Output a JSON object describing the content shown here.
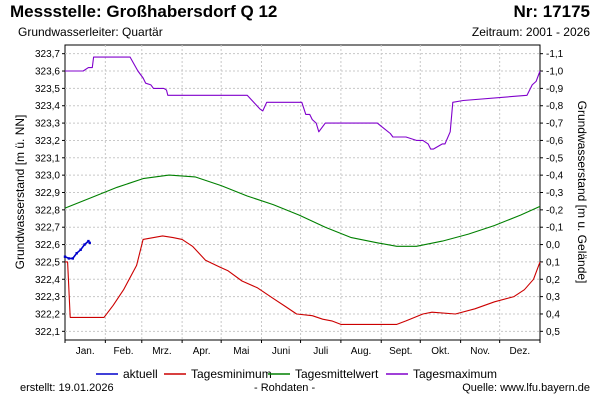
{
  "header": {
    "station": "Messstelle: Großhabersdorf Q 12",
    "number": "Nr: 17175",
    "aquifer": "Grundwasserleiter: Quartär",
    "period": "Zeitraum: 2001 - 2026"
  },
  "footer": {
    "created": "erstellt:  19.01.2026",
    "raw": "- Rohdaten -",
    "source": "Quelle: www.lfu.bayern.de"
  },
  "colors": {
    "aktuell": "#0000cc",
    "min": "#cc0000",
    "mean": "#008000",
    "max": "#8000cc",
    "grid": "#c8c8c8"
  },
  "chart_data": {
    "type": "line",
    "ylabel_left": "Grundwasserstand [m ü. NN]",
    "ylabel_right": "Grundwasserstand [m u. Gelände]",
    "ylim": [
      322.05,
      323.75
    ],
    "yticks_left": [
      "323,7",
      "323,6",
      "323,5",
      "323,4",
      "323,3",
      "323,2",
      "323,1",
      "323,0",
      "322,9",
      "322,8",
      "322,7",
      "322,6",
      "322,5",
      "322,4",
      "322,3",
      "322,2",
      "322,1"
    ],
    "yticks_right": [
      "-1,1",
      "-1,0",
      "-0,9",
      "-0,8",
      "-0,7",
      "-0,6",
      "-0,5",
      "-0,4",
      "-0,3",
      "-0,2",
      "-0,1",
      "0,0",
      "0,1",
      "0,2",
      "0,3",
      "0,4",
      "0,5"
    ],
    "xticks": [
      "Jan.",
      "Feb.",
      "Mrz.",
      "Apr.",
      "Mai",
      "Juni",
      "Juli",
      "Aug.",
      "Sept.",
      "Okt.",
      "Nov.",
      "Dez."
    ],
    "grid": true,
    "legend_position": "bottom",
    "series": [
      {
        "name": "aktuell",
        "color_key": "aktuell",
        "x": [
          0,
          3,
          6,
          9,
          12,
          15,
          18,
          19
        ],
        "y": [
          322.53,
          322.52,
          322.52,
          322.55,
          322.57,
          322.6,
          322.62,
          322.61
        ]
      },
      {
        "name": "Tagesminimum",
        "color_key": "min",
        "x": [
          0,
          2,
          4,
          30,
          37,
          45,
          55,
          60,
          75,
          83,
          90,
          98,
          108,
          119,
          125,
          136,
          148,
          160,
          170,
          178,
          190,
          198,
          205,
          212,
          232,
          255,
          262,
          275,
          282,
          300,
          315,
          330,
          345,
          353,
          360,
          365
        ],
        "y": [
          322.5,
          322.5,
          322.18,
          322.18,
          322.25,
          322.34,
          322.48,
          322.63,
          322.65,
          322.64,
          322.63,
          322.59,
          322.51,
          322.47,
          322.45,
          322.39,
          322.35,
          322.29,
          322.24,
          322.2,
          322.19,
          322.17,
          322.16,
          322.14,
          322.14,
          322.14,
          322.16,
          322.2,
          322.21,
          322.2,
          322.23,
          322.27,
          322.3,
          322.34,
          322.4,
          322.5
        ]
      },
      {
        "name": "Tagesmittelwert",
        "color_key": "mean",
        "x": [
          0,
          20,
          40,
          60,
          80,
          100,
          120,
          140,
          160,
          180,
          200,
          220,
          240,
          255,
          270,
          290,
          310,
          330,
          350,
          365
        ],
        "y": [
          322.81,
          322.87,
          322.93,
          322.98,
          323.0,
          322.99,
          322.94,
          322.88,
          322.83,
          322.77,
          322.7,
          322.64,
          322.61,
          322.59,
          322.59,
          322.62,
          322.66,
          322.71,
          322.77,
          322.82
        ]
      },
      {
        "name": "Tagesmaximum",
        "color_key": "max",
        "x": [
          0,
          14,
          18,
          21,
          22,
          50,
          56,
          60,
          62,
          66,
          68,
          72,
          76,
          78,
          79,
          82,
          85,
          140,
          145,
          150,
          152,
          155,
          160,
          182,
          185,
          188,
          190,
          193,
          195,
          200,
          240,
          245,
          250,
          252,
          262,
          270,
          272,
          275,
          279,
          281,
          283,
          290,
          292,
          296,
          298,
          306,
          355,
          359,
          362,
          365
        ],
        "y": [
          323.6,
          323.6,
          323.62,
          323.62,
          323.68,
          323.68,
          323.6,
          323.56,
          323.53,
          323.52,
          323.5,
          323.5,
          323.5,
          323.49,
          323.46,
          323.46,
          323.46,
          323.46,
          323.42,
          323.38,
          323.37,
          323.42,
          323.42,
          323.42,
          323.35,
          323.35,
          323.32,
          323.3,
          323.25,
          323.3,
          323.3,
          323.27,
          323.24,
          323.22,
          323.22,
          323.2,
          323.2,
          323.2,
          323.18,
          323.15,
          323.15,
          323.18,
          323.18,
          323.25,
          323.42,
          323.43,
          323.46,
          323.52,
          323.54,
          323.6
        ]
      }
    ]
  }
}
